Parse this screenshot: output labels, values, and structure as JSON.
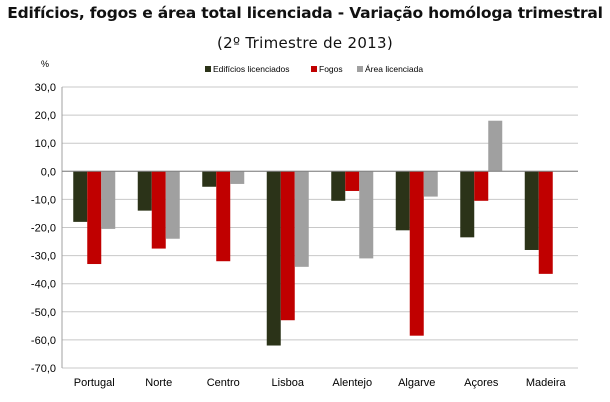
{
  "chart_data": {
    "type": "bar",
    "title": "Edifícios, fogos e área total licenciada - Variação homóloga trimestral",
    "subtitle": "(2º Trimestre de 2013)",
    "ylabel": "%",
    "xlabel": "",
    "ylim": [
      -70,
      30
    ],
    "ytick_step": 10,
    "ytick_labels": [
      "30,0",
      "20,0",
      "10,0",
      "0,0",
      "-10,0",
      "-20,0",
      "-30,0",
      "-40,0",
      "-50,0",
      "-60,0",
      "-70,0"
    ],
    "grid": true,
    "legend_position": "top-center",
    "categories": [
      "Portugal",
      "Norte",
      "Centro",
      "Lisboa",
      "Alentejo",
      "Algarve",
      "Açores",
      "Madeira"
    ],
    "series": [
      {
        "name": "Edifícios licenciados",
        "color": "#2b3318",
        "values": [
          -18.0,
          -14.0,
          -5.5,
          -62.0,
          -10.5,
          -21.0,
          -23.5,
          -28.0
        ]
      },
      {
        "name": "Fogos",
        "color": "#c00000",
        "values": [
          -33.0,
          -27.5,
          -32.0,
          -53.0,
          -7.0,
          -58.5,
          -10.5,
          -36.5
        ]
      },
      {
        "name": "Área licenciada",
        "color": "#a0a0a0",
        "values": [
          -20.5,
          -24.0,
          -4.5,
          -34.0,
          -31.0,
          -9.0,
          18.0,
          null
        ]
      }
    ]
  }
}
